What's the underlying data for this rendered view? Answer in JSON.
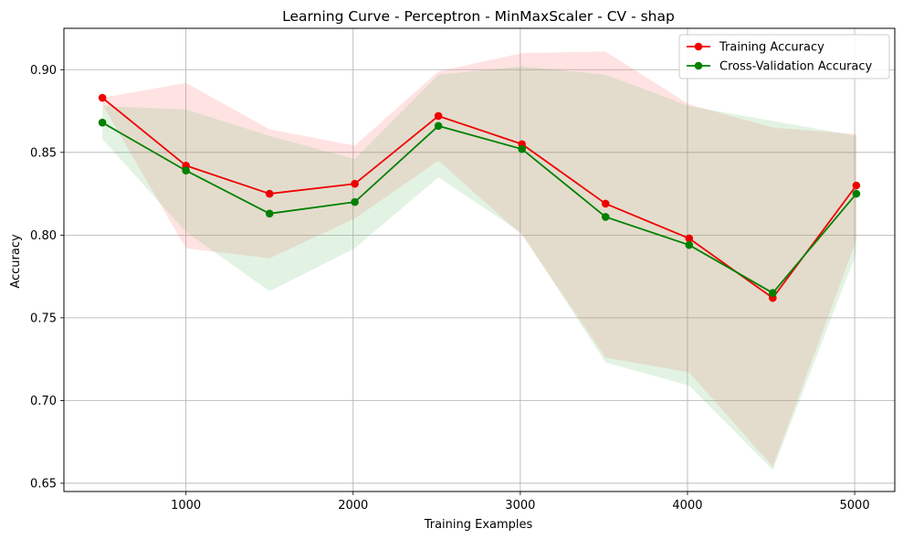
{
  "chart_data": {
    "type": "line",
    "title": "Learning Curve - Perceptron - MinMaxScaler - CV - shap",
    "xlabel": "Training Examples",
    "ylabel": "Accuracy",
    "xlim": [
      270,
      5240
    ],
    "ylim": [
      0.645,
      0.925
    ],
    "xticks": [
      1000,
      2000,
      3000,
      4000,
      5000
    ],
    "yticks": [
      0.65,
      0.7,
      0.75,
      0.8,
      0.85,
      0.9
    ],
    "xtick_labels": [
      "1000",
      "2000",
      "3000",
      "4000",
      "5000"
    ],
    "ytick_labels": [
      "0.65",
      "0.70",
      "0.75",
      "0.80",
      "0.85",
      "0.90"
    ],
    "grid": true,
    "legend_position": "top-right",
    "x": [
      500,
      1000,
      1500,
      2010,
      2510,
      3010,
      3510,
      4010,
      4510,
      5010
    ],
    "series": [
      {
        "name": "Training Accuracy",
        "color": "#ee0000",
        "band_color": "#ff6666",
        "values": [
          0.883,
          0.842,
          0.825,
          0.831,
          0.872,
          0.855,
          0.819,
          0.798,
          0.762,
          0.83
        ],
        "band_upper": [
          0.883,
          0.892,
          0.864,
          0.854,
          0.899,
          0.91,
          0.911,
          0.879,
          0.865,
          0.861
        ],
        "band_lower": [
          0.879,
          0.792,
          0.786,
          0.81,
          0.845,
          0.8,
          0.726,
          0.717,
          0.66,
          0.797
        ]
      },
      {
        "name": "Cross-Validation Accuracy",
        "color": "#008000",
        "band_color": "#66bb66",
        "values": [
          0.868,
          0.839,
          0.813,
          0.82,
          0.866,
          0.852,
          0.811,
          0.794,
          0.765,
          0.825
        ],
        "band_upper": [
          0.878,
          0.876,
          0.86,
          0.846,
          0.897,
          0.902,
          0.897,
          0.878,
          0.869,
          0.86
        ],
        "band_lower": [
          0.858,
          0.802,
          0.766,
          0.792,
          0.835,
          0.801,
          0.723,
          0.709,
          0.658,
          0.789
        ]
      }
    ]
  }
}
